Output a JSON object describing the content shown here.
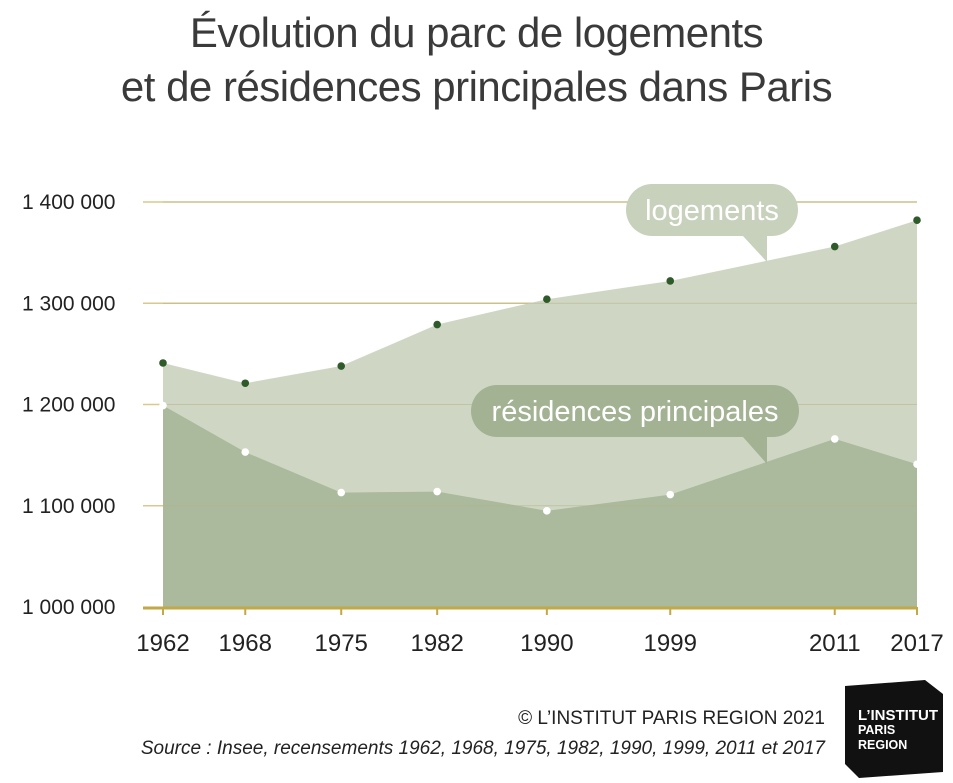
{
  "title_line1": "Évolution du parc de logements",
  "title_line2": "et de résidences principales dans Paris",
  "copyright": "© L’INSTITUT PARIS REGION 2021",
  "source": "Source : Insee, recensements 1962, 1968, 1975, 1982, 1990, 1999, 2011 et 2017",
  "logo": {
    "line1": "L’INSTITUT",
    "line2": "PARIS",
    "line3": "REGION"
  },
  "colors": {
    "logements_fill": "#cfd7c4",
    "residences_fill": "#abb99c",
    "logements_point": "#2f5a2a",
    "residences_point": "#ffffff",
    "grid": "#d9c98e",
    "axis": "#c2a847",
    "label_bubble_logements": "#c8d1bc",
    "label_bubble_residences": "#a2b293"
  },
  "chart_data": {
    "type": "area",
    "x": [
      1962,
      1968,
      1975,
      1982,
      1990,
      1999,
      2011,
      2017
    ],
    "categories": [
      "1962",
      "1968",
      "1975",
      "1982",
      "1990",
      "1999",
      "2011",
      "2017"
    ],
    "series": [
      {
        "name": "logements",
        "values": [
          1241000,
          1221000,
          1238000,
          1279000,
          1304000,
          1322000,
          1356000,
          1382000
        ]
      },
      {
        "name": "résidences principales",
        "values": [
          1199000,
          1153000,
          1113000,
          1114000,
          1095000,
          1111000,
          1166000,
          1141000
        ]
      }
    ],
    "ylim": [
      1000000,
      1400000
    ],
    "yticks": [
      1000000,
      1100000,
      1200000,
      1300000,
      1400000
    ],
    "ytick_labels": [
      "1 000 000",
      "1 100 000",
      "1 200 000",
      "1 300 000",
      "1 400 000"
    ],
    "grid": true,
    "xlabel": "",
    "ylabel": ""
  }
}
